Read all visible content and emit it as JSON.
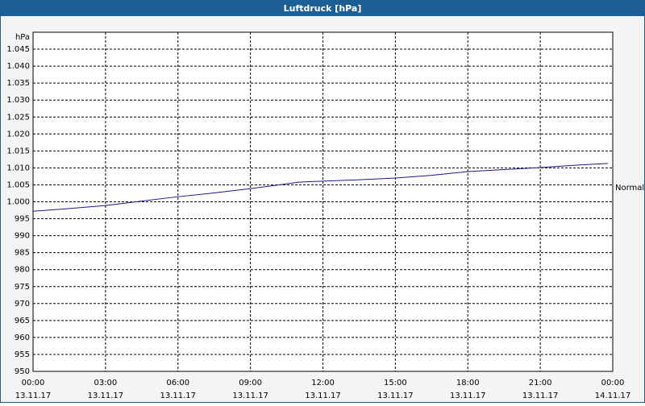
{
  "chart_data": {
    "type": "line",
    "title": "Luftdruck [hPa]",
    "y_label": "hPa",
    "annotation": "Normal",
    "x": [
      0,
      1.5,
      3,
      4.5,
      6,
      7.5,
      9,
      10,
      11,
      12,
      13.5,
      15,
      16.5,
      18,
      19.5,
      21,
      22.5,
      23.8
    ],
    "series": [
      {
        "name": "Luftdruck",
        "color": "#1a1a8c",
        "values": [
          997.2,
          998.0,
          998.9,
          1000.2,
          1001.5,
          1002.6,
          1003.9,
          1004.8,
          1005.8,
          1006.1,
          1006.5,
          1007.0,
          1007.8,
          1008.9,
          1009.5,
          1010.1,
          1010.8,
          1011.3
        ]
      }
    ],
    "xlim": [
      0,
      24
    ],
    "xticks": [
      {
        "value": 0,
        "label": "00:00",
        "date": "13.11.17"
      },
      {
        "value": 3,
        "label": "03:00",
        "date": "13.11.17"
      },
      {
        "value": 6,
        "label": "06:00",
        "date": "13.11.17"
      },
      {
        "value": 9,
        "label": "09:00",
        "date": "13.11.17"
      },
      {
        "value": 12,
        "label": "12:00",
        "date": "13.11.17"
      },
      {
        "value": 15,
        "label": "15:00",
        "date": "13.11.17"
      },
      {
        "value": 18,
        "label": "18:00",
        "date": "13.11.17"
      },
      {
        "value": 21,
        "label": "21:00",
        "date": "13.11.17"
      },
      {
        "value": 24,
        "label": "00:00",
        "date": "14.11.17"
      }
    ],
    "ylim": [
      950,
      1050
    ],
    "yticks": [
      950,
      955,
      960,
      965,
      970,
      975,
      980,
      985,
      990,
      995,
      {
        "value": 1000,
        "label": "1.000"
      },
      {
        "value": 1005,
        "label": "1.005"
      },
      {
        "value": 1010,
        "label": "1.010"
      },
      {
        "value": 1015,
        "label": "1.015"
      },
      {
        "value": 1020,
        "label": "1.020"
      },
      {
        "value": 1025,
        "label": "1.025"
      },
      {
        "value": 1030,
        "label": "1.030"
      },
      {
        "value": 1035,
        "label": "1.035"
      },
      {
        "value": 1040,
        "label": "1.040"
      },
      {
        "value": 1045,
        "label": "1.045"
      }
    ],
    "grid": true
  }
}
